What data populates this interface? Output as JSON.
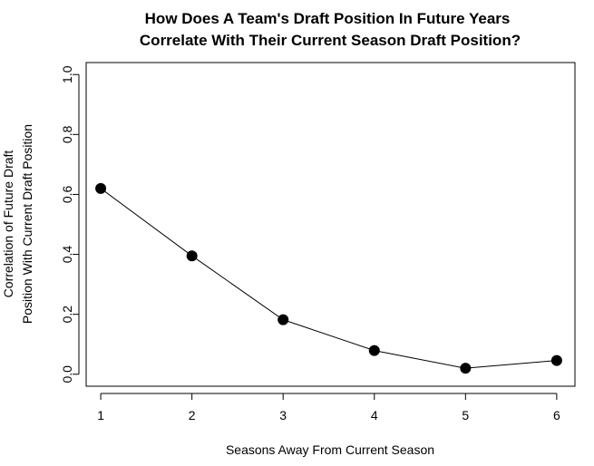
{
  "chart_data": {
    "type": "line",
    "title_lines": [
      "How Does A Team's Draft Position In Future Years",
      "Correlate With Their Current Season Draft Position?"
    ],
    "xlabel": "Seasons Away From Current Season",
    "ylabel_lines": [
      "Correlation of Future Draft",
      "Position With Current Draft Position"
    ],
    "x": [
      1,
      2,
      3,
      4,
      5,
      6
    ],
    "series": [
      {
        "values": [
          0.62,
          0.395,
          0.182,
          0.079,
          0.02,
          0.046
        ]
      }
    ],
    "xticks": [
      "1",
      "2",
      "3",
      "4",
      "5",
      "6"
    ],
    "yticks": [
      "0.0",
      "0.2",
      "0.4",
      "0.6",
      "0.8",
      "1.0"
    ],
    "xlim": [
      0.84,
      6.2
    ],
    "ylim": [
      -0.04,
      1.04
    ],
    "grid": false,
    "marker": "filled-circle",
    "line_color": "#000000",
    "marker_color": "#000000"
  }
}
